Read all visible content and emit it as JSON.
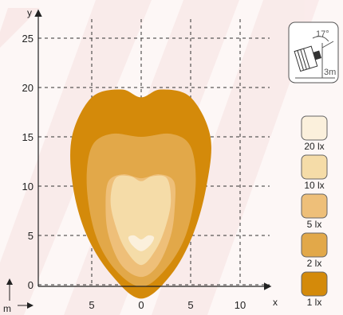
{
  "chart_data": {
    "type": "heatmap",
    "title": "",
    "xlabel": "x",
    "ylabel": "y",
    "unit_label": "m",
    "xlim": [
      -8,
      13
    ],
    "ylim": [
      -1,
      27
    ],
    "x_ticks": [
      {
        "value": -5,
        "label": "5"
      },
      {
        "value": 0,
        "label": "0"
      },
      {
        "value": 5,
        "label": "5"
      },
      {
        "value": 10,
        "label": "10"
      }
    ],
    "y_ticks": [
      {
        "value": 0,
        "label": "0"
      },
      {
        "value": 5,
        "label": "5"
      },
      {
        "value": 10,
        "label": "10"
      },
      {
        "value": 15,
        "label": "15"
      },
      {
        "value": 20,
        "label": "20"
      },
      {
        "value": 25,
        "label": "25"
      }
    ],
    "grid": true,
    "legend_position": "right",
    "isolux_levels": [
      {
        "label": "1 lx",
        "color": "#d48a0a",
        "outline": [
          [
            0,
            -1.4
          ],
          [
            -3,
            1
          ],
          [
            -5.5,
            5
          ],
          [
            -6.9,
            10
          ],
          [
            -7,
            15
          ],
          [
            -5,
            19
          ],
          [
            -2,
            19.8
          ],
          [
            0,
            19
          ],
          [
            2,
            19.8
          ],
          [
            5,
            19
          ],
          [
            7,
            15
          ],
          [
            6.6,
            10
          ],
          [
            5.2,
            5
          ],
          [
            3,
            1
          ]
        ]
      },
      {
        "label": "2 lx",
        "color": "#e2a849",
        "outline": [
          [
            0,
            -0.2
          ],
          [
            -2.6,
            1.5
          ],
          [
            -4.6,
            5
          ],
          [
            -5.5,
            10
          ],
          [
            -5,
            14
          ],
          [
            -3,
            15.3
          ],
          [
            0,
            15
          ],
          [
            3,
            15.3
          ],
          [
            5,
            14
          ],
          [
            5.5,
            10
          ],
          [
            4.5,
            5
          ],
          [
            2.4,
            1.5
          ]
        ]
      },
      {
        "label": "5 lx",
        "color": "#eebf79",
        "outline": [
          [
            0,
            0.8
          ],
          [
            -2,
            2
          ],
          [
            -3.3,
            5
          ],
          [
            -3.6,
            8
          ],
          [
            -3.3,
            10.5
          ],
          [
            -1.8,
            11.2
          ],
          [
            0,
            10.8
          ],
          [
            1.8,
            11.2
          ],
          [
            3.3,
            10.5
          ],
          [
            3.4,
            8
          ],
          [
            3,
            5
          ],
          [
            1.7,
            2
          ]
        ]
      },
      {
        "label": "10 lx",
        "color": "#f5dca8",
        "outline": [
          [
            0,
            2
          ],
          [
            -1.6,
            3.6
          ],
          [
            -2.6,
            6
          ],
          [
            -3.1,
            8.5
          ],
          [
            -2.6,
            10.8
          ],
          [
            -1.1,
            11
          ],
          [
            0,
            10.5
          ],
          [
            1.1,
            11
          ],
          [
            2.6,
            10.8
          ],
          [
            3,
            8.5
          ],
          [
            2.5,
            6
          ],
          [
            1.5,
            3.6
          ]
        ]
      },
      {
        "label": "20 lx",
        "color": "#fbf0dc",
        "outline": [
          [
            0,
            3.4
          ],
          [
            -0.9,
            4
          ],
          [
            -1.3,
            4.8
          ],
          [
            -0.7,
            5
          ],
          [
            0,
            4.6
          ],
          [
            0.7,
            5
          ],
          [
            1.3,
            4.8
          ],
          [
            0.9,
            4
          ]
        ]
      }
    ],
    "mounting": {
      "tilt": "17°",
      "height": "3m"
    }
  }
}
